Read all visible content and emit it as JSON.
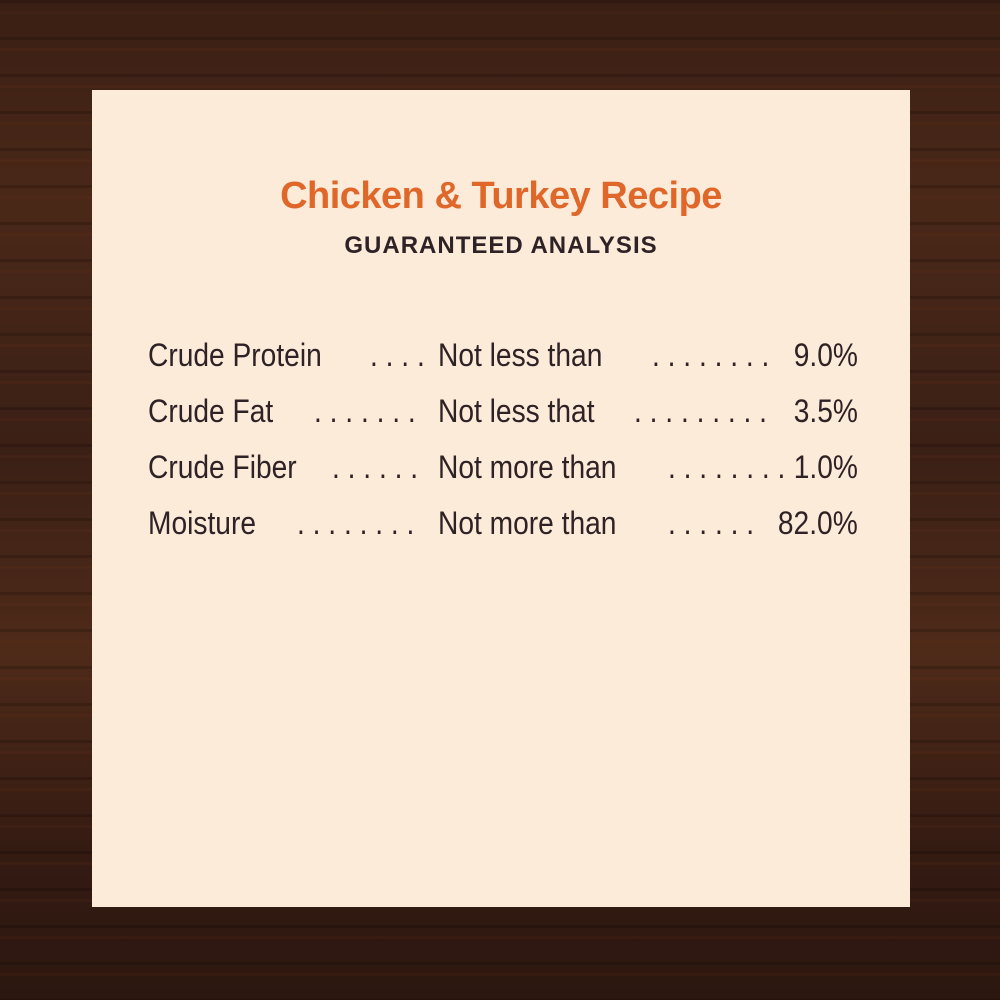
{
  "title": "Chicken & Turkey Recipe",
  "subtitle": "GUARANTEED ANALYSIS",
  "colors": {
    "title": "#e0672a",
    "text": "#2e2226",
    "panel": "#fdebd9",
    "background": "#3a1f14"
  },
  "rows": [
    {
      "name": "Crude Protein",
      "leader1": ". . . .",
      "qualifier": "Not less than",
      "leader2": ". . . . . . . .",
      "value": "9.0%"
    },
    {
      "name": "Crude Fat",
      "leader1": ". . . . . . .",
      "qualifier": "Not less that",
      "leader2": ". . . . . . . . .",
      "value": "3.5%"
    },
    {
      "name": "Crude Fiber",
      "leader1": ". . . . . .",
      "qualifier": "Not more than",
      "leader2": ". . . . . . . .",
      "value": "1.0%"
    },
    {
      "name": "Moisture",
      "leader1": ". . . . . . . .",
      "qualifier": "Not more than",
      "leader2": ". . . . . .",
      "value": "82.0%"
    }
  ]
}
